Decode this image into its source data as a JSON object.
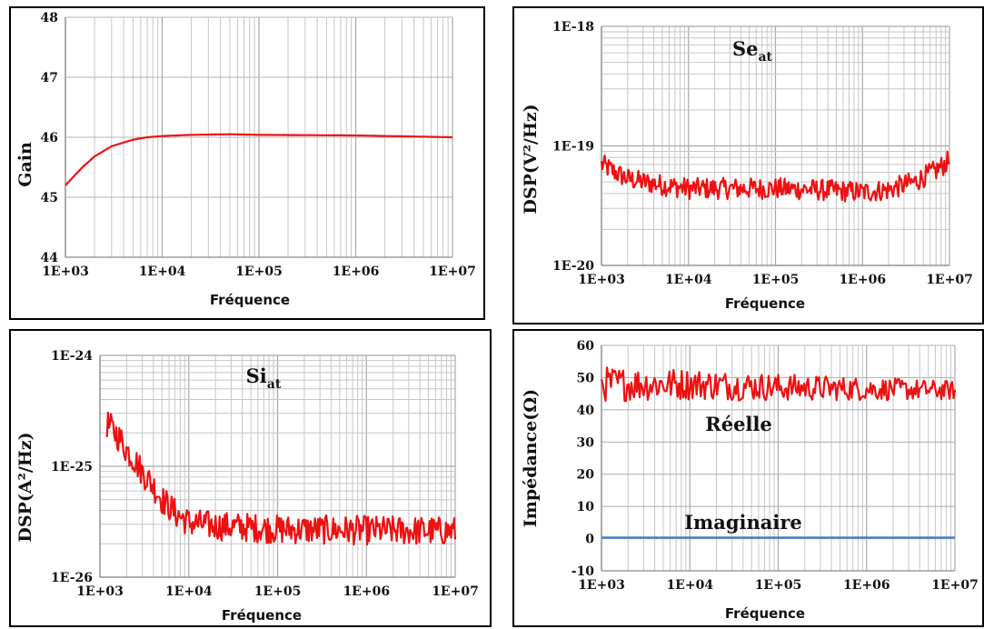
{
  "colors": {
    "series_red": "#ee1111",
    "series_blue": "#4a7fc0",
    "grid": "#c6c6c6",
    "axis": "#8a8a8a"
  },
  "chart_data": [
    {
      "type": "line",
      "xscale": "log",
      "xlim": [
        1000,
        10000000
      ],
      "xticks": [
        "1E+03",
        "1E+04",
        "1E+05",
        "1E+06",
        "1E+07"
      ],
      "ylim": [
        44,
        48
      ],
      "yticks": [
        "44",
        "45",
        "46",
        "47",
        "48"
      ],
      "xlabel": "Fréquence",
      "ylabel": "Gain",
      "series": [
        {
          "color": "#ee1111",
          "x": [
            1000,
            1500,
            2000,
            3000,
            5000,
            7000,
            10000,
            20000,
            50000,
            100000,
            1000000,
            10000000
          ],
          "y": [
            45.2,
            45.5,
            45.68,
            45.85,
            45.96,
            46.0,
            46.02,
            46.04,
            46.05,
            46.04,
            46.03,
            46.0
          ]
        }
      ]
    },
    {
      "type": "line",
      "xscale": "log",
      "yscale": "log",
      "xlim": [
        1000,
        10000000
      ],
      "xticks": [
        "1E+03",
        "1E+04",
        "1E+05",
        "1E+06",
        "1E+07"
      ],
      "ylim": [
        1e-20,
        1e-18
      ],
      "yticks": [
        "1E-20",
        "1E-19",
        "1E-18"
      ],
      "xlabel": "Fréquence",
      "ylabel": "DSP(V²/Hz)",
      "annotation": {
        "main": "Se",
        "sub": "at"
      },
      "series": [
        {
          "color": "#ee1111",
          "x": [
            1000,
            1500,
            2000,
            3000,
            5000,
            10000,
            30000,
            100000,
            300000,
            1000000,
            2000000,
            4000000,
            7000000,
            10000000
          ],
          "y": [
            7e-20,
            5.9e-20,
            5.3e-20,
            5e-20,
            4.7e-20,
            4.4e-20,
            4.4e-20,
            4.4e-20,
            4.3e-20,
            4.1e-20,
            4.3e-20,
            5e-20,
            6.2e-20,
            7.5e-20
          ]
        }
      ]
    },
    {
      "type": "line",
      "xscale": "log",
      "yscale": "log",
      "xlim": [
        1000,
        10000000
      ],
      "xticks": [
        "1E+03",
        "1E+04",
        "1E+05",
        "1E+06",
        "1E+07"
      ],
      "ylim": [
        1e-26,
        1e-24
      ],
      "yticks": [
        "1E-26",
        "1E-25",
        "1E-24"
      ],
      "xlabel": "Fréquence",
      "ylabel": "DSP(A²/Hz)",
      "annotation": {
        "main": "Si",
        "sub": "at"
      },
      "series": [
        {
          "color": "#ee1111",
          "x": [
            1200,
            1500,
            2000,
            3000,
            4000,
            5000,
            7000,
            10000,
            20000,
            50000,
            100000,
            1000000,
            10000000
          ],
          "y": [
            2.4e-25,
            2e-25,
            1.4e-25,
            8.8e-26,
            6.6e-26,
            5e-26,
            3.8e-26,
            3.1e-26,
            2.9e-26,
            2.8e-26,
            2.7e-26,
            2.65e-26,
            2.6e-26
          ]
        }
      ]
    },
    {
      "type": "line",
      "xscale": "log",
      "xlim": [
        1000,
        10000000
      ],
      "xticks": [
        "1E+03",
        "1E+04",
        "1E+05",
        "1E+06",
        "1E+07"
      ],
      "ylim": [
        -10,
        60
      ],
      "yticks": [
        "-10",
        "0",
        "10",
        "20",
        "30",
        "40",
        "50",
        "60"
      ],
      "xlabel": "Fréquence",
      "ylabel": "Impédance(Ω)",
      "labels": [
        "Réelle",
        "Imaginaire"
      ],
      "series": [
        {
          "color": "#ee1111",
          "x": [
            1000,
            10000,
            100000,
            1000000,
            10000000
          ],
          "y": [
            48.0,
            48.0,
            47.0,
            46.5,
            46.0
          ]
        },
        {
          "color": "#4a7fc0",
          "x": [
            1000,
            10000000
          ],
          "y": [
            0.3,
            0.3
          ]
        }
      ]
    }
  ]
}
